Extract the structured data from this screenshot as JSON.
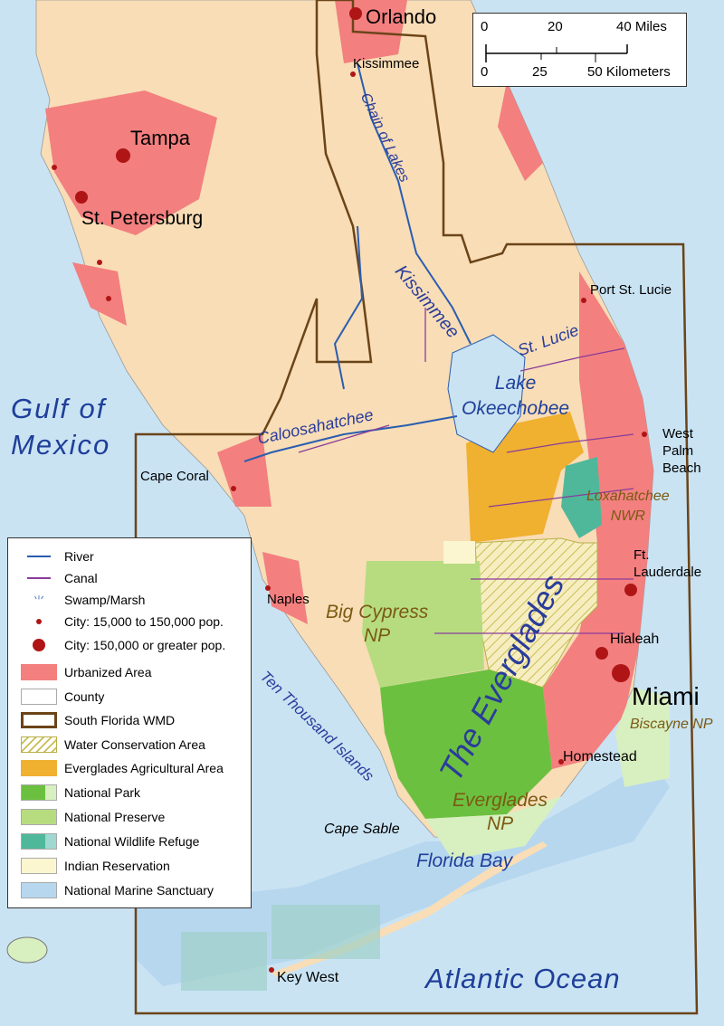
{
  "colors": {
    "water": "#c9e3f3",
    "land": "#f8ddb6",
    "urban": "#f37f7f",
    "wmd_border": "#6b4418",
    "wca": "#d7cf7a",
    "eaa": "#f0b030",
    "national_park": "#6cc040",
    "national_preserve": "#b7dc80",
    "nwr": "#4fb89a",
    "indian_reservation": "#fbf6d0",
    "marine_sanctuary": "#b7d7ef",
    "river": "#2a5db0",
    "canal": "#8a3c9a",
    "city": "#b01515"
  },
  "scale_bar": {
    "miles_ticks": [
      "0",
      "20",
      "40 Miles"
    ],
    "km_ticks": [
      "0",
      "25",
      "50 Kilometers"
    ]
  },
  "cities": {
    "major": [
      "Orlando",
      "Tampa",
      "St. Petersburg",
      "Miami"
    ],
    "other": [
      "Kissimmee",
      "Port St. Lucie",
      "West Palm Beach",
      "Cape Coral",
      "Naples",
      "Ft. Lauderdale",
      "Hialeah",
      "Homestead",
      "Key West"
    ]
  },
  "labels": {
    "orlando": "Orlando",
    "kissimmee_city": "Kissimmee",
    "tampa": "Tampa",
    "st_petersburg": "St. Petersburg",
    "port_st_lucie": "Port St. Lucie",
    "west_palm_beach": [
      "West",
      "Palm",
      "Beach"
    ],
    "cape_coral": "Cape Coral",
    "naples": "Naples",
    "ft_lauderdale": [
      "Ft.",
      "Lauderdale"
    ],
    "hialeah": "Hialeah",
    "miami": "Miami",
    "homestead": "Homestead",
    "key_west": "Key West",
    "gulf": [
      "Gulf of",
      "Mexico"
    ],
    "atlantic": "Atlantic Ocean",
    "florida_bay": "Florida Bay",
    "cape_sable": "Cape Sable",
    "lake": [
      "Lake",
      "Okeechobee"
    ],
    "chain_of_lakes": "Chain of Lakes",
    "kissimmee_river": "Kissimmee",
    "st_lucie": "St. Lucie",
    "caloosahatchee": "Caloosahatchee",
    "ten_thousand": "Ten Thousand Islands",
    "everglades": "The Everglades",
    "big_cypress": [
      "Big Cypress",
      "NP"
    ],
    "everglades_np": [
      "Everglades",
      "NP"
    ],
    "loxahatchee": [
      "Loxahatchee",
      "NWR"
    ],
    "biscayne": "Biscayne NP"
  },
  "legend": [
    {
      "label": "River",
      "icon": "river-line"
    },
    {
      "label": "Canal",
      "icon": "canal-line"
    },
    {
      "label": "Swamp/Marsh",
      "icon": "swamp-icon"
    },
    {
      "label": "City: 15,000 to 150,000 pop.",
      "icon": "small-city-dot"
    },
    {
      "label": "City: 150,000 or greater pop.",
      "icon": "large-city-dot"
    },
    {
      "label": "Urbanized Area"
    },
    {
      "label": "County"
    },
    {
      "label": "South Florida WMD"
    },
    {
      "label": "Water Conservation Area"
    },
    {
      "label": "Everglades Agricultural Area"
    },
    {
      "label": "National Park"
    },
    {
      "label": "National Preserve"
    },
    {
      "label": "National Wildlife Refuge"
    },
    {
      "label": "Indian Reservation"
    },
    {
      "label": "National Marine Sanctuary"
    }
  ]
}
